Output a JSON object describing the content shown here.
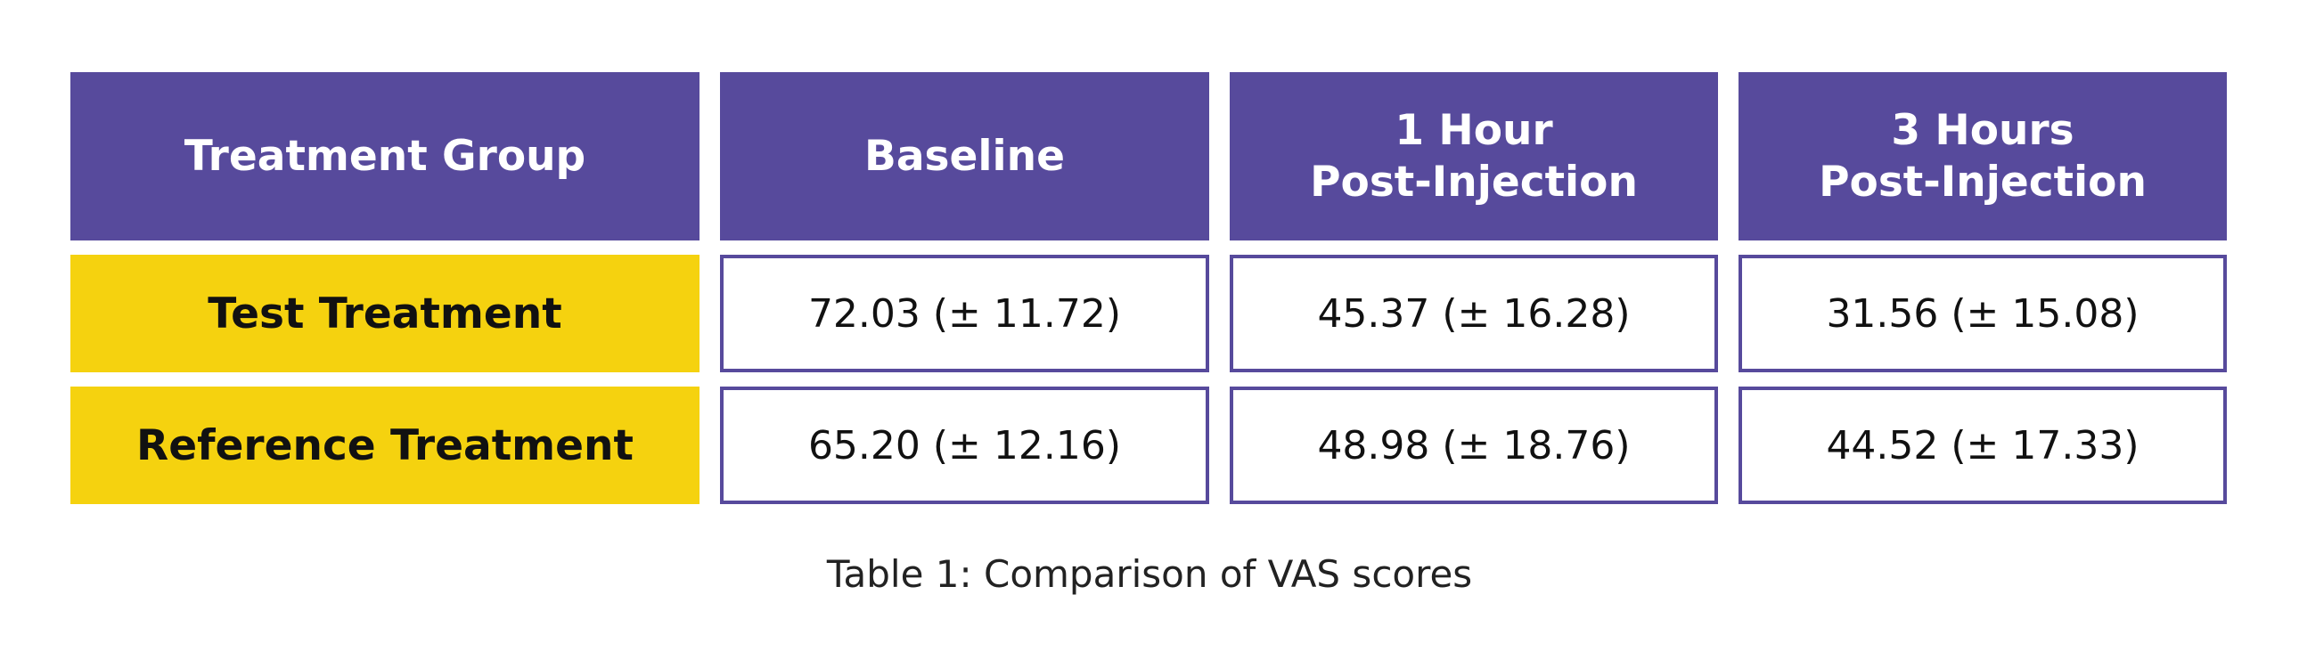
{
  "table": {
    "header": [
      [
        "Treatment Group"
      ],
      [
        "Baseline"
      ],
      [
        "1 Hour",
        "Post-Injection"
      ],
      [
        "3 Hours",
        "Post-Injection"
      ]
    ],
    "rows": [
      [
        "Test Treatment",
        "72.03 (± 11.72)",
        "45.37 (± 16.28)",
        "31.56 (± 15.08)"
      ],
      [
        "Reference Treatment",
        "65.20 (± 12.16)",
        "48.98 (± 18.76)",
        "44.52 (± 17.33)"
      ]
    ],
    "caption": "Table 1: Comparison of VAS scores"
  }
}
